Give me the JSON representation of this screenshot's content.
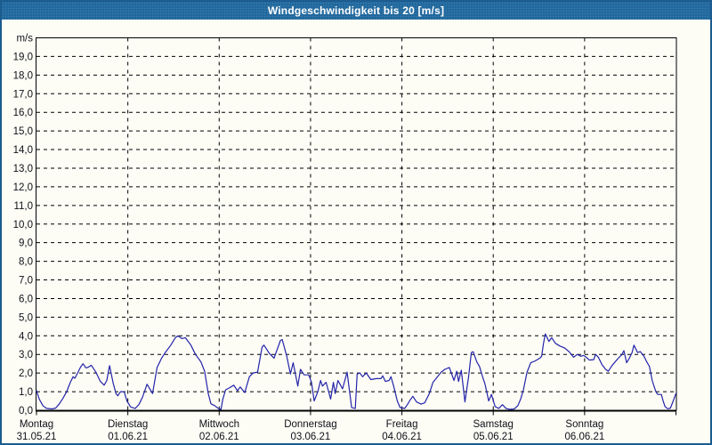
{
  "window": {
    "title": "Windgeschwindigkeit bis 20 [m/s]"
  },
  "colors": {
    "title_bar": "#20689d",
    "title_text": "#ffffff",
    "frame_border": "#1d5c8f",
    "content_bg": "#fdfdf6",
    "grid": "#000000",
    "axis": "#000000",
    "label_text": "#101018",
    "line": "#2424aa"
  },
  "chart_data": {
    "type": "line",
    "title": "Windgeschwindigkeit bis 20 [m/s]",
    "ylabel_unit": "m/s",
    "ylim": [
      0,
      20
    ],
    "y_tick_step": 1.0,
    "y_tick_labels": [
      "19,0",
      "18,0",
      "17,0",
      "16,0",
      "15,0",
      "14,0",
      "13,0",
      "12,0",
      "11,0",
      "10,0",
      "9,0",
      "8,0",
      "7,0",
      "6,0",
      "5,0",
      "4,0",
      "3,0",
      "2,0",
      "1,0",
      "0,0"
    ],
    "x_days_total": 7,
    "grid": "dashed",
    "legend": "none",
    "x_categories": [
      {
        "day": "Montag",
        "date": "31.05.21"
      },
      {
        "day": "Dienstag",
        "date": "01.06.21"
      },
      {
        "day": "Mittwoch",
        "date": "02.06.21"
      },
      {
        "day": "Donnerstag",
        "date": "03.06.21"
      },
      {
        "day": "Freitag",
        "date": "04.06.21"
      },
      {
        "day": "Samstag",
        "date": "05.06.21"
      },
      {
        "day": "Sonntag",
        "date": "06.06.21"
      }
    ],
    "series": [
      {
        "name": "Windgeschwindigkeit",
        "unit": "m/s",
        "points": [
          [
            0,
            1.05
          ],
          [
            0.03,
            0.6
          ],
          [
            0.07,
            0.25
          ],
          [
            0.11,
            0.1
          ],
          [
            0.17,
            0.07
          ],
          [
            0.21,
            0.12
          ],
          [
            0.25,
            0.35
          ],
          [
            0.29,
            0.65
          ],
          [
            0.33,
            1.0
          ],
          [
            0.37,
            1.5
          ],
          [
            0.4,
            1.8
          ],
          [
            0.42,
            1.72
          ],
          [
            0.45,
            2.0
          ],
          [
            0.48,
            2.3
          ],
          [
            0.51,
            2.5
          ],
          [
            0.54,
            2.28
          ],
          [
            0.56,
            2.3
          ],
          [
            0.58,
            2.35
          ],
          [
            0.6,
            2.42
          ],
          [
            0.65,
            2.05
          ],
          [
            0.7,
            1.55
          ],
          [
            0.74,
            1.35
          ],
          [
            0.77,
            1.6
          ],
          [
            0.8,
            2.4
          ],
          [
            0.84,
            1.45
          ],
          [
            0.87,
            0.9
          ],
          [
            0.89,
            0.78
          ],
          [
            0.92,
            1.0
          ],
          [
            0.96,
            1.0
          ],
          [
            0.99,
            0.5
          ],
          [
            1.03,
            0.18
          ],
          [
            1.08,
            0.1
          ],
          [
            1.12,
            0.3
          ],
          [
            1.16,
            0.7
          ],
          [
            1.21,
            1.4
          ],
          [
            1.24,
            1.15
          ],
          [
            1.27,
            0.9
          ],
          [
            1.32,
            2.3
          ],
          [
            1.37,
            2.8
          ],
          [
            1.41,
            3.1
          ],
          [
            1.47,
            3.5
          ],
          [
            1.52,
            3.9
          ],
          [
            1.55,
            4.0
          ],
          [
            1.59,
            3.85
          ],
          [
            1.63,
            3.9
          ],
          [
            1.66,
            3.7
          ],
          [
            1.69,
            3.5
          ],
          [
            1.74,
            3.0
          ],
          [
            1.8,
            2.6
          ],
          [
            1.84,
            2.1
          ],
          [
            1.88,
            0.9
          ],
          [
            1.91,
            0.35
          ],
          [
            1.95,
            0.25
          ],
          [
            1.99,
            0.1
          ],
          [
            2.02,
            0.05
          ],
          [
            2.04,
            0.6
          ],
          [
            2.07,
            1.1
          ],
          [
            2.11,
            1.2
          ],
          [
            2.16,
            1.35
          ],
          [
            2.2,
            1.05
          ],
          [
            2.23,
            1.25
          ],
          [
            2.28,
            0.95
          ],
          [
            2.33,
            1.8
          ],
          [
            2.37,
            2.0
          ],
          [
            2.42,
            2.05
          ],
          [
            2.47,
            3.4
          ],
          [
            2.49,
            3.5
          ],
          [
            2.55,
            3.05
          ],
          [
            2.6,
            2.8
          ],
          [
            2.67,
            3.75
          ],
          [
            2.69,
            3.8
          ],
          [
            2.74,
            2.9
          ],
          [
            2.78,
            1.95
          ],
          [
            2.81,
            2.55
          ],
          [
            2.86,
            1.3
          ],
          [
            2.89,
            2.2
          ],
          [
            2.93,
            1.9
          ],
          [
            2.98,
            1.9
          ],
          [
            3.01,
            1.5
          ],
          [
            3.04,
            0.5
          ],
          [
            3.08,
            1.0
          ],
          [
            3.11,
            1.6
          ],
          [
            3.13,
            1.3
          ],
          [
            3.17,
            1.5
          ],
          [
            3.22,
            0.6
          ],
          [
            3.25,
            1.5
          ],
          [
            3.27,
            0.9
          ],
          [
            3.3,
            1.6
          ],
          [
            3.35,
            1.15
          ],
          [
            3.4,
            2.05
          ],
          [
            3.45,
            0.15
          ],
          [
            3.49,
            0.1
          ],
          [
            3.51,
            1.95
          ],
          [
            3.54,
            2.0
          ],
          [
            3.57,
            1.8
          ],
          [
            3.61,
            2.0
          ],
          [
            3.66,
            1.65
          ],
          [
            3.72,
            1.7
          ],
          [
            3.77,
            1.7
          ],
          [
            3.79,
            1.85
          ],
          [
            3.82,
            1.55
          ],
          [
            3.86,
            1.6
          ],
          [
            3.88,
            1.8
          ],
          [
            3.91,
            1.3
          ],
          [
            3.95,
            0.5
          ],
          [
            3.98,
            0.15
          ],
          [
            4.03,
            0.1
          ],
          [
            4.06,
            0.3
          ],
          [
            4.09,
            0.55
          ],
          [
            4.12,
            0.75
          ],
          [
            4.16,
            0.45
          ],
          [
            4.21,
            0.33
          ],
          [
            4.25,
            0.4
          ],
          [
            4.3,
            0.9
          ],
          [
            4.34,
            1.5
          ],
          [
            4.39,
            1.8
          ],
          [
            4.43,
            2.05
          ],
          [
            4.47,
            2.2
          ],
          [
            4.52,
            2.3
          ],
          [
            4.57,
            1.6
          ],
          [
            4.6,
            2.1
          ],
          [
            4.62,
            1.55
          ],
          [
            4.65,
            2.15
          ],
          [
            4.69,
            0.45
          ],
          [
            4.73,
            1.8
          ],
          [
            4.76,
            3.1
          ],
          [
            4.78,
            3.15
          ],
          [
            4.82,
            2.6
          ],
          [
            4.85,
            2.35
          ],
          [
            4.88,
            1.85
          ],
          [
            4.91,
            1.4
          ],
          [
            4.95,
            0.5
          ],
          [
            4.98,
            0.85
          ],
          [
            5.02,
            0.2
          ],
          [
            5.06,
            0.1
          ],
          [
            5.1,
            0.3
          ],
          [
            5.14,
            0.1
          ],
          [
            5.18,
            0.05
          ],
          [
            5.23,
            0.07
          ],
          [
            5.27,
            0.25
          ],
          [
            5.3,
            0.6
          ],
          [
            5.33,
            1.1
          ],
          [
            5.37,
            2.05
          ],
          [
            5.41,
            2.55
          ],
          [
            5.46,
            2.65
          ],
          [
            5.51,
            2.8
          ],
          [
            5.53,
            2.9
          ],
          [
            5.55,
            3.6
          ],
          [
            5.57,
            4.1
          ],
          [
            5.61,
            3.7
          ],
          [
            5.64,
            3.9
          ],
          [
            5.68,
            3.6
          ],
          [
            5.73,
            3.45
          ],
          [
            5.78,
            3.35
          ],
          [
            5.83,
            3.15
          ],
          [
            5.88,
            2.85
          ],
          [
            5.92,
            3.0
          ],
          [
            5.96,
            2.9
          ],
          [
            5.99,
            2.95
          ],
          [
            6.03,
            2.8
          ],
          [
            6.05,
            2.7
          ],
          [
            6.1,
            2.72
          ],
          [
            6.12,
            3.0
          ],
          [
            6.15,
            2.85
          ],
          [
            6.19,
            2.45
          ],
          [
            6.23,
            2.2
          ],
          [
            6.26,
            2.1
          ],
          [
            6.3,
            2.4
          ],
          [
            6.36,
            2.75
          ],
          [
            6.41,
            3.0
          ],
          [
            6.43,
            3.2
          ],
          [
            6.46,
            2.55
          ],
          [
            6.49,
            2.8
          ],
          [
            6.52,
            3.1
          ],
          [
            6.54,
            3.5
          ],
          [
            6.58,
            3.1
          ],
          [
            6.61,
            3.15
          ],
          [
            6.65,
            2.9
          ],
          [
            6.68,
            2.6
          ],
          [
            6.71,
            2.35
          ],
          [
            6.74,
            1.6
          ],
          [
            6.78,
            1.0
          ],
          [
            6.8,
            0.85
          ],
          [
            6.84,
            0.85
          ],
          [
            6.86,
            0.5
          ],
          [
            6.88,
            0.2
          ],
          [
            6.91,
            0.08
          ],
          [
            6.94,
            0.12
          ],
          [
            6.97,
            0.5
          ],
          [
            7.0,
            0.9
          ]
        ]
      }
    ]
  }
}
